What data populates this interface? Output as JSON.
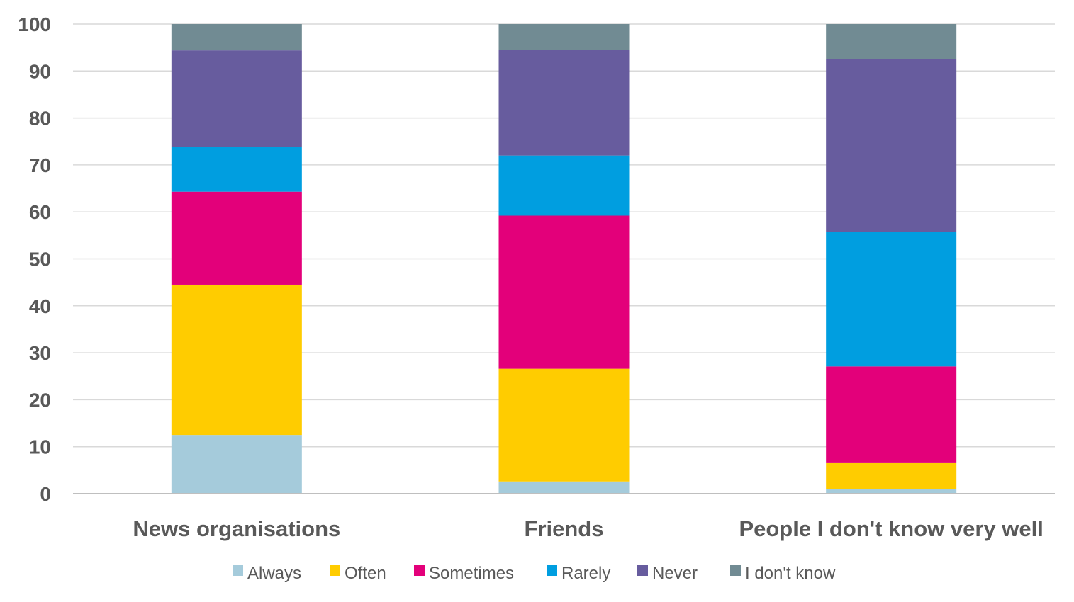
{
  "chart_data": {
    "type": "bar",
    "stacked": true,
    "title": "",
    "xlabel": "",
    "ylabel": "",
    "ylim": [
      0,
      100
    ],
    "yticks": [
      0,
      10,
      20,
      30,
      40,
      50,
      60,
      70,
      80,
      90,
      100
    ],
    "grid": true,
    "legend_position": "bottom",
    "categories": [
      "News organisations",
      "Friends",
      "People I don't know very well"
    ],
    "series": [
      {
        "name": "Always",
        "color": "#a5cbdb",
        "values": [
          12.5,
          2.6,
          1.0
        ]
      },
      {
        "name": "Often",
        "color": "#ffcc00",
        "values": [
          32.0,
          24.0,
          5.5
        ]
      },
      {
        "name": "Sometimes",
        "color": "#e3007a",
        "values": [
          19.8,
          32.6,
          20.6
        ]
      },
      {
        "name": "Rarely",
        "color": "#009ee0",
        "values": [
          9.5,
          12.8,
          28.6
        ]
      },
      {
        "name": "Never",
        "color": "#675c9e",
        "values": [
          20.6,
          22.5,
          36.8
        ]
      },
      {
        "name": "I don't know",
        "color": "#718b93",
        "values": [
          5.6,
          5.5,
          7.5
        ]
      }
    ]
  }
}
